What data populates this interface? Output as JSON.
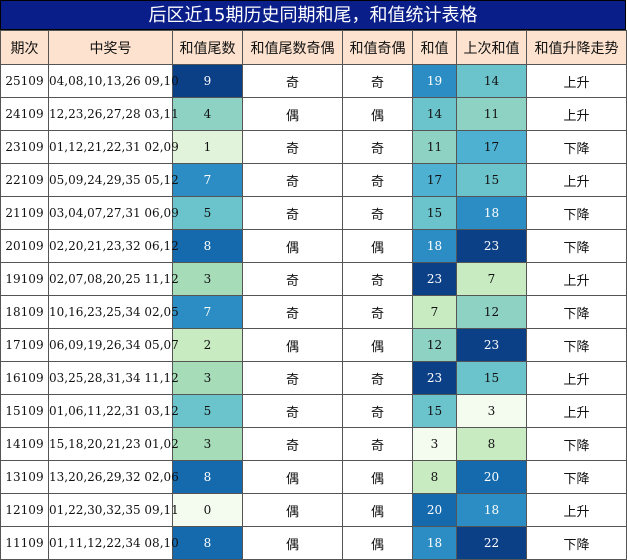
{
  "title": "后区近15期历史同期和尾，和值统计表格",
  "headers": [
    "期次",
    "中奖号",
    "和值尾数",
    "和值尾数奇偶",
    "和值奇偶",
    "和值",
    "上次和值",
    "和值升降走势"
  ],
  "rows": [
    {
      "issue": "25109",
      "numbers": "04,08,10,13,26 09,10",
      "tail": "9",
      "tail_parity": "奇",
      "sum_parity": "奇",
      "sum": "19",
      "prev_sum": "14",
      "trend": "上升"
    },
    {
      "issue": "24109",
      "numbers": "12,23,26,27,28 03,11",
      "tail": "4",
      "tail_parity": "偶",
      "sum_parity": "偶",
      "sum": "14",
      "prev_sum": "11",
      "trend": "上升"
    },
    {
      "issue": "23109",
      "numbers": "01,12,21,22,31 02,09",
      "tail": "1",
      "tail_parity": "奇",
      "sum_parity": "奇",
      "sum": "11",
      "prev_sum": "17",
      "trend": "下降"
    },
    {
      "issue": "22109",
      "numbers": "05,09,24,29,35 05,12",
      "tail": "7",
      "tail_parity": "奇",
      "sum_parity": "奇",
      "sum": "17",
      "prev_sum": "15",
      "trend": "上升"
    },
    {
      "issue": "21109",
      "numbers": "03,04,07,27,31 06,09",
      "tail": "5",
      "tail_parity": "奇",
      "sum_parity": "奇",
      "sum": "15",
      "prev_sum": "18",
      "trend": "下降"
    },
    {
      "issue": "20109",
      "numbers": "02,20,21,23,32 06,12",
      "tail": "8",
      "tail_parity": "偶",
      "sum_parity": "偶",
      "sum": "18",
      "prev_sum": "23",
      "trend": "下降"
    },
    {
      "issue": "19109",
      "numbers": "02,07,08,20,25 11,12",
      "tail": "3",
      "tail_parity": "奇",
      "sum_parity": "奇",
      "sum": "23",
      "prev_sum": "7",
      "trend": "上升"
    },
    {
      "issue": "18109",
      "numbers": "10,16,23,25,34 02,05",
      "tail": "7",
      "tail_parity": "奇",
      "sum_parity": "奇",
      "sum": "7",
      "prev_sum": "12",
      "trend": "下降"
    },
    {
      "issue": "17109",
      "numbers": "06,09,19,26,34 05,07",
      "tail": "2",
      "tail_parity": "偶",
      "sum_parity": "偶",
      "sum": "12",
      "prev_sum": "23",
      "trend": "下降"
    },
    {
      "issue": "16109",
      "numbers": "03,25,28,31,34 11,12",
      "tail": "3",
      "tail_parity": "奇",
      "sum_parity": "奇",
      "sum": "23",
      "prev_sum": "15",
      "trend": "上升"
    },
    {
      "issue": "15109",
      "numbers": "01,06,11,22,31 03,12",
      "tail": "5",
      "tail_parity": "奇",
      "sum_parity": "奇",
      "sum": "15",
      "prev_sum": "3",
      "trend": "上升"
    },
    {
      "issue": "14109",
      "numbers": "15,18,20,21,23 01,02",
      "tail": "3",
      "tail_parity": "奇",
      "sum_parity": "奇",
      "sum": "3",
      "prev_sum": "8",
      "trend": "下降"
    },
    {
      "issue": "13109",
      "numbers": "13,20,26,29,32 02,06",
      "tail": "8",
      "tail_parity": "偶",
      "sum_parity": "偶",
      "sum": "8",
      "prev_sum": "20",
      "trend": "下降"
    },
    {
      "issue": "12109",
      "numbers": "01,22,30,32,35 09,11",
      "tail": "0",
      "tail_parity": "偶",
      "sum_parity": "偶",
      "sum": "20",
      "prev_sum": "18",
      "trend": "上升"
    },
    {
      "issue": "11109",
      "numbers": "01,11,12,22,34 08,10",
      "tail": "8",
      "tail_parity": "偶",
      "sum_parity": "偶",
      "sum": "18",
      "prev_sum": "22",
      "trend": "下降"
    }
  ],
  "colors": {
    "title_bg": "#0a1e8a",
    "header_bg": "#fde3cf",
    "scale": [
      "#f4fbef",
      "#e1f3da",
      "#c8ebc2",
      "#a6dcb8",
      "#8ed2c4",
      "#6bc4cb",
      "#4eb1d2",
      "#2b8dc4",
      "#1569ad",
      "#0b3f86"
    ]
  }
}
